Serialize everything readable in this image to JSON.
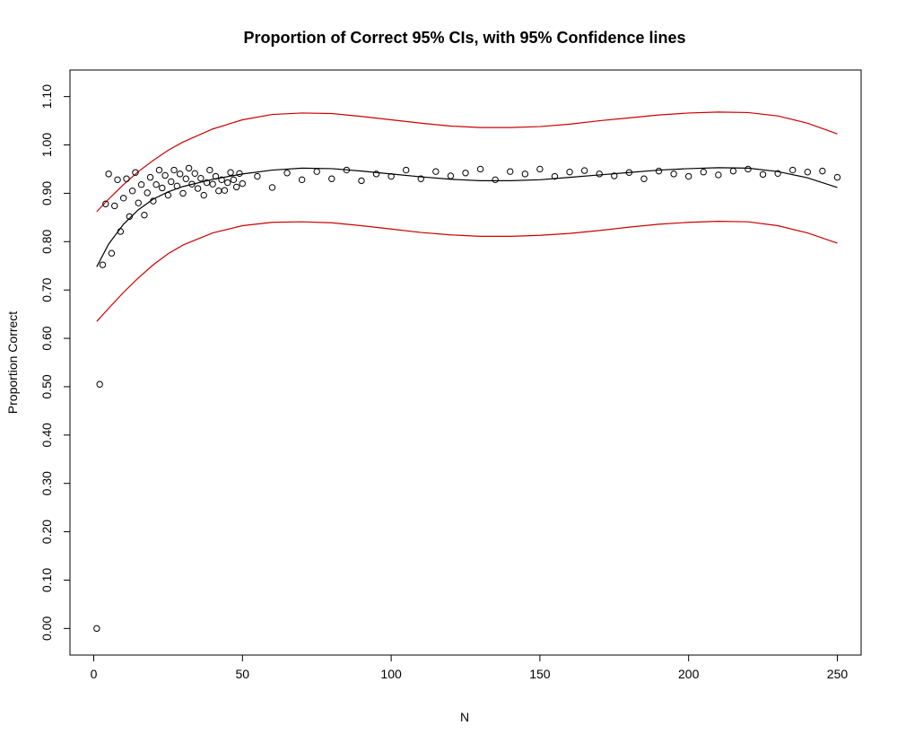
{
  "chart_data": {
    "type": "scatter",
    "title": "Proportion of Correct 95% CIs, with 95% Confidence lines",
    "xlabel": "N",
    "ylabel": "Proportion Correct",
    "xlim": [
      -8,
      258
    ],
    "ylim": [
      -0.055,
      1.155
    ],
    "x_ticks": [
      "0",
      "50",
      "100",
      "150",
      "200",
      "250"
    ],
    "x_tick_values": [
      0,
      50,
      100,
      150,
      200,
      250
    ],
    "y_ticks": [
      "0.00",
      "0.10",
      "0.20",
      "0.30",
      "0.40",
      "0.50",
      "0.60",
      "0.70",
      "0.80",
      "0.90",
      "1.00",
      "1.10"
    ],
    "y_tick_values": [
      0,
      0.1,
      0.2,
      0.3,
      0.4,
      0.5,
      0.6,
      0.7,
      0.8,
      0.9,
      1.0,
      1.1
    ],
    "grid": false,
    "legend": "none",
    "colors": {
      "points": "#000000",
      "fit": "#000000",
      "bounds": "#cc0000",
      "frame": "#000000"
    },
    "points": {
      "x": [
        1,
        2,
        3,
        4,
        5,
        6,
        7,
        8,
        9,
        10,
        11,
        12,
        13,
        14,
        15,
        16,
        17,
        18,
        19,
        20,
        21,
        22,
        23,
        24,
        25,
        26,
        27,
        28,
        29,
        30,
        31,
        32,
        33,
        34,
        35,
        36,
        37,
        38,
        39,
        40,
        41,
        42,
        43,
        44,
        45,
        46,
        47,
        48,
        49,
        50,
        55,
        60,
        65,
        70,
        75,
        80,
        85,
        90,
        95,
        100,
        105,
        110,
        115,
        120,
        125,
        130,
        135,
        140,
        145,
        150,
        155,
        160,
        165,
        170,
        175,
        180,
        185,
        190,
        195,
        200,
        205,
        210,
        215,
        220,
        225,
        230,
        235,
        240,
        245,
        250
      ],
      "y": [
        0.0,
        0.505,
        0.752,
        0.878,
        0.94,
        0.776,
        0.874,
        0.928,
        0.821,
        0.89,
        0.93,
        0.852,
        0.905,
        0.943,
        0.88,
        0.918,
        0.855,
        0.901,
        0.933,
        0.884,
        0.918,
        0.948,
        0.911,
        0.937,
        0.896,
        0.924,
        0.948,
        0.915,
        0.94,
        0.9,
        0.93,
        0.952,
        0.919,
        0.941,
        0.91,
        0.931,
        0.896,
        0.922,
        0.948,
        0.919,
        0.935,
        0.905,
        0.928,
        0.906,
        0.922,
        0.943,
        0.928,
        0.913,
        0.941,
        0.92,
        0.935,
        0.912,
        0.942,
        0.928,
        0.945,
        0.93,
        0.948,
        0.926,
        0.94,
        0.935,
        0.948,
        0.93,
        0.945,
        0.936,
        0.942,
        0.95,
        0.928,
        0.945,
        0.94,
        0.95,
        0.935,
        0.944,
        0.947,
        0.94,
        0.936,
        0.943,
        0.93,
        0.946,
        0.94,
        0.935,
        0.944,
        0.938,
        0.946,
        0.95,
        0.939,
        0.941,
        0.948,
        0.944,
        0.946,
        0.933
      ]
    },
    "fit_curve": {
      "x": [
        1,
        5,
        10,
        15,
        20,
        25,
        30,
        40,
        50,
        60,
        70,
        80,
        90,
        100,
        110,
        120,
        130,
        140,
        150,
        160,
        170,
        180,
        190,
        200,
        210,
        220,
        230,
        240,
        250
      ],
      "y": [
        0.748,
        0.795,
        0.836,
        0.866,
        0.888,
        0.903,
        0.914,
        0.929,
        0.94,
        0.948,
        0.952,
        0.951,
        0.946,
        0.94,
        0.934,
        0.929,
        0.926,
        0.926,
        0.928,
        0.933,
        0.938,
        0.943,
        0.948,
        0.951,
        0.953,
        0.952,
        0.945,
        0.932,
        0.912
      ]
    },
    "upper_bound": {
      "x": [
        1,
        5,
        10,
        15,
        20,
        25,
        30,
        40,
        50,
        60,
        70,
        80,
        90,
        100,
        110,
        120,
        130,
        140,
        150,
        160,
        170,
        180,
        190,
        200,
        210,
        220,
        230,
        240,
        250
      ],
      "y": [
        0.862,
        0.888,
        0.918,
        0.945,
        0.968,
        0.989,
        1.006,
        1.033,
        1.052,
        1.063,
        1.066,
        1.065,
        1.059,
        1.052,
        1.045,
        1.039,
        1.036,
        1.036,
        1.038,
        1.043,
        1.05,
        1.056,
        1.062,
        1.066,
        1.068,
        1.067,
        1.06,
        1.045,
        1.023
      ]
    },
    "lower_bound": {
      "x": [
        1,
        5,
        10,
        15,
        20,
        25,
        30,
        40,
        50,
        60,
        70,
        80,
        90,
        100,
        110,
        120,
        130,
        140,
        150,
        160,
        170,
        180,
        190,
        200,
        210,
        220,
        230,
        240,
        250
      ],
      "y": [
        0.635,
        0.662,
        0.695,
        0.725,
        0.752,
        0.775,
        0.793,
        0.818,
        0.833,
        0.84,
        0.841,
        0.839,
        0.833,
        0.826,
        0.819,
        0.814,
        0.811,
        0.811,
        0.813,
        0.817,
        0.823,
        0.83,
        0.836,
        0.84,
        0.842,
        0.841,
        0.833,
        0.818,
        0.797
      ]
    }
  }
}
